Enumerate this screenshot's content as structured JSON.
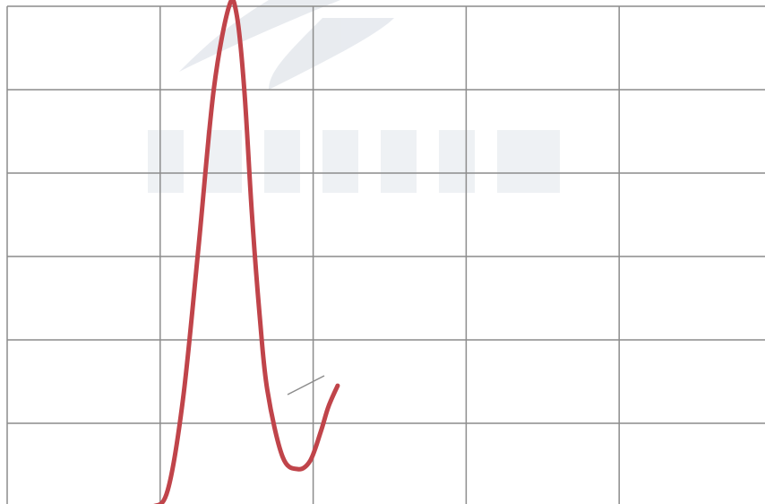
{
  "chart_data": {
    "type": "line",
    "title": "",
    "xlabel": "",
    "ylabel": "",
    "grid": true,
    "xlim": [
      0,
      5
    ],
    "ylim": [
      0,
      6
    ],
    "series": [
      {
        "color": "#c0444a",
        "x": [
          0.81,
          0.95,
          1.05,
          1.15,
          1.25,
          1.35,
          1.45,
          1.5,
          1.55,
          1.6,
          1.65,
          1.7,
          1.8,
          1.9,
          1.98,
          2.05,
          2.1,
          2.16
        ],
        "y": [
          0.0,
          0.0,
          0.2,
          1.3,
          3.1,
          5.0,
          6.0,
          5.9,
          5.0,
          3.5,
          2.3,
          1.4,
          0.6,
          0.45,
          0.55,
          0.9,
          1.2,
          1.45
        ]
      }
    ]
  },
  "colors": {
    "grid": "#8c8c8c",
    "line": "#c0444a",
    "watermark": "#e6e9ee",
    "annotation": "#8c8c8c"
  }
}
